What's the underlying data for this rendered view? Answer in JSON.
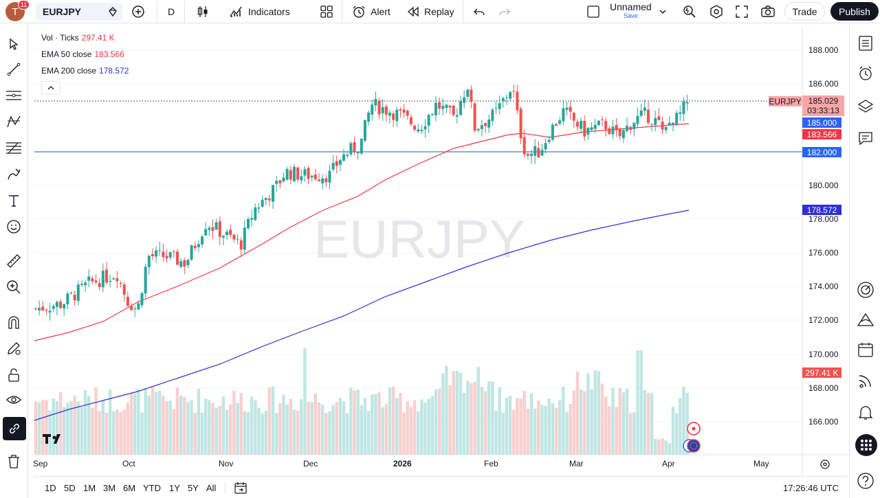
{
  "topbar": {
    "notification_count": "11",
    "avatar_letter": "T",
    "symbol": "EURJPY",
    "interval": "D",
    "indicators_label": "Indicators",
    "alert_label": "Alert",
    "replay_label": "Replay",
    "layout_name": "Unnamed",
    "layout_save": "Save",
    "trade_label": "Trade",
    "publish_label": "Publish"
  },
  "legend": {
    "vol_label": "Vol · Ticks",
    "vol_value": "297.41 K",
    "ema50_label": "EMA 50 close",
    "ema50_value": "183.566",
    "ema200_label": "EMA 200 close",
    "ema200_value": "178.572"
  },
  "watermark": "EURJPY",
  "price_axis": {
    "ticks": [
      "188.000",
      "186.000",
      "180.000",
      "178.000",
      "176.000",
      "174.000",
      "172.000",
      "170.000",
      "168.000",
      "166.000"
    ],
    "symbol_tag": "EURJPY",
    "last_price": "185.029",
    "countdown": "03:33:13",
    "hline_price": "185.000",
    "ema50_tag": "183.566",
    "support_price": "182.000",
    "ema200_tag": "178.572",
    "volume_tag": "297.41 K"
  },
  "time_axis": [
    "Sep",
    "Oct",
    "Nov",
    "Dec",
    "2026",
    "Feb",
    "Mar",
    "Apr",
    "May"
  ],
  "bottombar": {
    "ranges": [
      "1D",
      "5D",
      "1M",
      "3M",
      "6M",
      "YTD",
      "1Y",
      "5Y",
      "All"
    ],
    "clock": "17:26:46 UTC"
  },
  "colors": {
    "up": "#26a69a",
    "down": "#ef5350",
    "ema50": "#f23645",
    "ema200": "#2f2fd6",
    "support_line": "#1e5ba8"
  },
  "chart_data": {
    "type": "candlestick",
    "ylim": [
      165,
      189
    ],
    "seed": 7
  }
}
